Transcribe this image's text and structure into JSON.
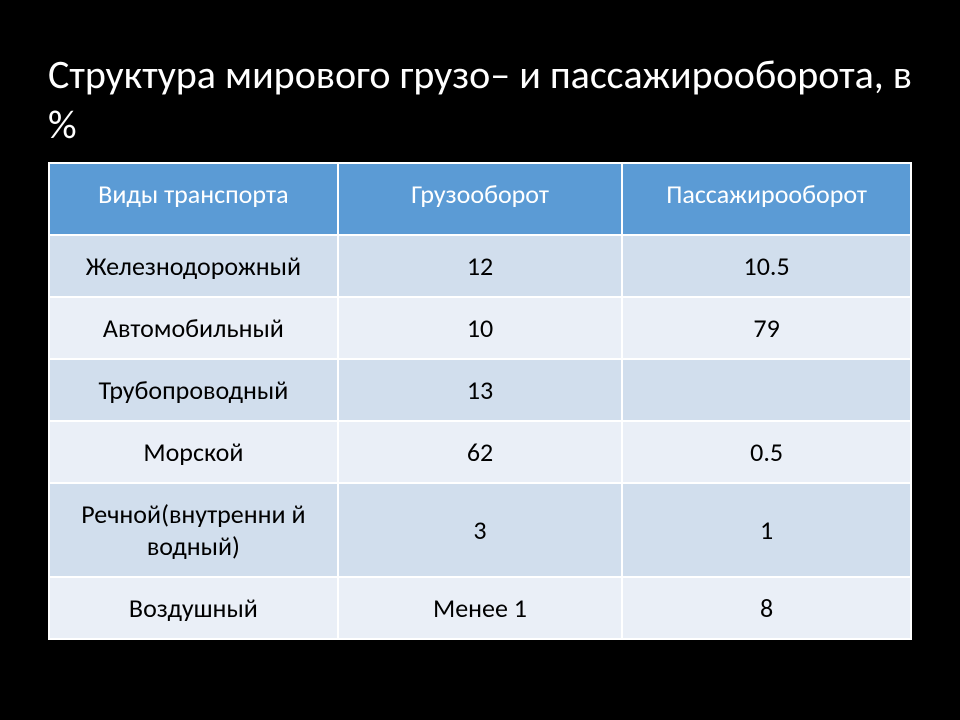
{
  "slide": {
    "title": "Структура мирового грузо– и пассажирооборота, в %"
  },
  "table": {
    "header_bg": "#5b9bd5",
    "header_text_color": "#ffffff",
    "row_odd_bg": "#d1deed",
    "row_even_bg": "#eaeff7",
    "cell_text_color": "#000000",
    "border_color": "#ffffff",
    "columns": [
      "Виды транспорта",
      "Грузооборот",
      "Пассажирооборот"
    ],
    "rows": [
      {
        "type": "Железнодорожный",
        "freight": "12",
        "passenger": "10.5"
      },
      {
        "type": "Автомобильный",
        "freight": "10",
        "passenger": "79"
      },
      {
        "type": "Трубопроводный",
        "freight": "13",
        "passenger": ""
      },
      {
        "type": "Морской",
        "freight": "62",
        "passenger": "0.5"
      },
      {
        "type": "Речной(внутренни й водный)",
        "freight": "3",
        "passenger": "1"
      },
      {
        "type": "Воздушный",
        "freight": "Менее 1",
        "passenger": "8"
      }
    ],
    "fontsize_header": 26,
    "fontsize_cell": 26,
    "fontsize_title": 40
  },
  "background_color": "#000000",
  "title_color": "#ffffff"
}
